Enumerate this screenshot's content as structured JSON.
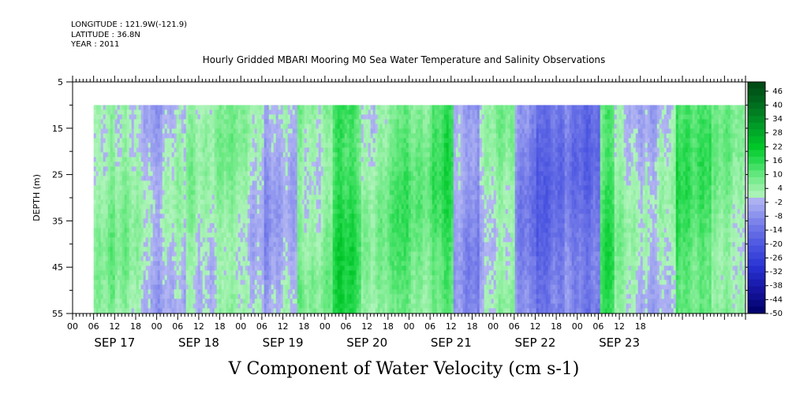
{
  "header": {
    "lines": [
      "LONGITUDE : 121.9W(-121.9)",
      "LATITUDE : 36.8N",
      "YEAR : 2011"
    ],
    "title": "Hourly Gridded MBARI Mooring M0 Sea Water Temperature and Salinity Observations"
  },
  "chart_data": {
    "type": "heatmap",
    "title": "Hourly Gridded MBARI Mooring M0 Sea Water Temperature and Salinity Observations",
    "xlabel": "V Component of Water Velocity (cm s-1)",
    "ylabel": "DEPTH (m)",
    "y_ticks": [
      "5",
      "15",
      "25",
      "35",
      "45",
      "55"
    ],
    "y_range": [
      5,
      55
    ],
    "y_inverted": true,
    "x_range": [
      "2011-09-16 00:00",
      "2011-09-23 24:00"
    ],
    "x_hour_labels": [
      "00",
      "06",
      "12",
      "18",
      "00",
      "06",
      "12",
      "18",
      "00",
      "06",
      "12",
      "18",
      "00",
      "06",
      "12",
      "18",
      "00",
      "06",
      "12",
      "18",
      "00",
      "06",
      "12",
      "18",
      "00",
      "06",
      "12",
      "18"
    ],
    "x_day_labels": [
      "SEP 17",
      "SEP 18",
      "SEP 19",
      "SEP 20",
      "SEP 21",
      "SEP 22",
      "SEP 23"
    ],
    "data_depth_range": [
      10,
      55
    ],
    "data_time_start": "2011-09-16 06:00",
    "colorbar": {
      "labels": [
        "46",
        "40",
        "34",
        "28",
        "22",
        "16",
        "10",
        "4",
        "-2",
        "-8",
        "-14",
        "-20",
        "-26",
        "-32",
        "-38",
        "-44",
        "-50"
      ],
      "range": [
        -50,
        50
      ]
    },
    "time_profile": {
      "description_units": "cm s-1 (approx., by time segment)",
      "segments": [
        {
          "start": "2011-09-16 06:00",
          "end": "2011-09-16 12:00",
          "v": 6
        },
        {
          "start": "2011-09-16 12:00",
          "end": "2011-09-16 22:00",
          "v": 2
        },
        {
          "start": "2011-09-16 22:00",
          "end": "2011-09-17 08:00",
          "v": -2
        },
        {
          "start": "2011-09-17 08:00",
          "end": "2011-09-17 20:00",
          "v": 4
        },
        {
          "start": "2011-09-17 20:00",
          "end": "2011-09-18 06:00",
          "v": 2
        },
        {
          "start": "2011-09-18 06:00",
          "end": "2011-09-18 16:00",
          "v": -4
        },
        {
          "start": "2011-09-18 16:00",
          "end": "2011-09-19 02:00",
          "v": 6
        },
        {
          "start": "2011-09-19 02:00",
          "end": "2011-09-19 10:00",
          "v": 14
        },
        {
          "start": "2011-09-19 10:00",
          "end": "2011-09-19 20:00",
          "v": 6
        },
        {
          "start": "2011-09-19 20:00",
          "end": "2011-09-20 06:00",
          "v": 10
        },
        {
          "start": "2011-09-20 06:00",
          "end": "2011-09-20 12:00",
          "v": 12
        },
        {
          "start": "2011-09-20 12:00",
          "end": "2011-09-20 20:00",
          "v": -6
        },
        {
          "start": "2011-09-20 20:00",
          "end": "2011-09-21 06:00",
          "v": 2
        },
        {
          "start": "2011-09-21 06:00",
          "end": "2011-09-21 12:00",
          "v": -8
        },
        {
          "start": "2011-09-21 12:00",
          "end": "2011-09-21 20:00",
          "v": -16
        },
        {
          "start": "2011-09-21 20:00",
          "end": "2011-09-22 06:00",
          "v": -12
        },
        {
          "start": "2011-09-22 06:00",
          "end": "2011-09-22 10:00",
          "v": 12
        },
        {
          "start": "2011-09-22 10:00",
          "end": "2011-09-22 20:00",
          "v": 2
        },
        {
          "start": "2011-09-22 20:00",
          "end": "2011-09-23 04:00",
          "v": -2
        },
        {
          "start": "2011-09-23 04:00",
          "end": "2011-09-23 14:00",
          "v": 14
        },
        {
          "start": "2011-09-23 14:00",
          "end": "2011-09-24 00:00",
          "v": 4
        }
      ]
    }
  },
  "colors": {
    "strong_positive": "#00c81e",
    "positive": "#66e486",
    "near_zero_positive": "#a8f0b8",
    "near_zero_negative": "#a9aef0",
    "negative": "#8b91ea",
    "strong_negative": "#5e66e0"
  }
}
